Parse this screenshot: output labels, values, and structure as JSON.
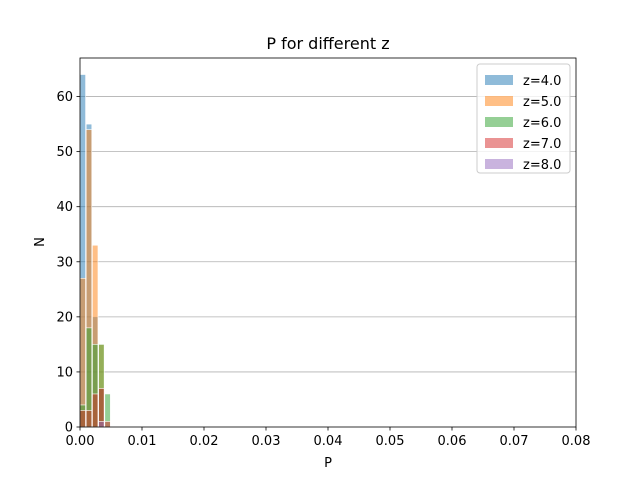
{
  "chart_data": {
    "type": "bar",
    "title": "P for different z",
    "xlabel": "P",
    "ylabel": "N",
    "xlim": [
      0,
      0.08
    ],
    "ylim": [
      0,
      67
    ],
    "xticks": [
      "0.00",
      "0.01",
      "0.02",
      "0.03",
      "0.04",
      "0.05",
      "0.06",
      "0.07",
      "0.08"
    ],
    "yticks": [
      "0",
      "10",
      "20",
      "30",
      "40",
      "50",
      "60"
    ],
    "grid": "y",
    "legend_position": "top-right",
    "bin_width": 0.001,
    "bin_starts": [
      0.0,
      0.001,
      0.002,
      0.003,
      0.004,
      0.005
    ],
    "series": [
      {
        "name": "z=4.0",
        "color": "#1f77b4",
        "values": [
          64,
          55,
          20,
          7,
          0,
          0
        ]
      },
      {
        "name": "z=5.0",
        "color": "#ff7f0e",
        "values": [
          27,
          54,
          33,
          15,
          0,
          0
        ]
      },
      {
        "name": "z=6.0",
        "color": "#2ca02c",
        "values": [
          4,
          18,
          15,
          15,
          6,
          0
        ]
      },
      {
        "name": "z=7.0",
        "color": "#d62728",
        "values": [
          3,
          3,
          6,
          7,
          1,
          0
        ]
      },
      {
        "name": "z=8.0",
        "color": "#9467bd",
        "values": [
          0,
          0,
          0,
          1,
          0,
          0
        ]
      }
    ]
  }
}
